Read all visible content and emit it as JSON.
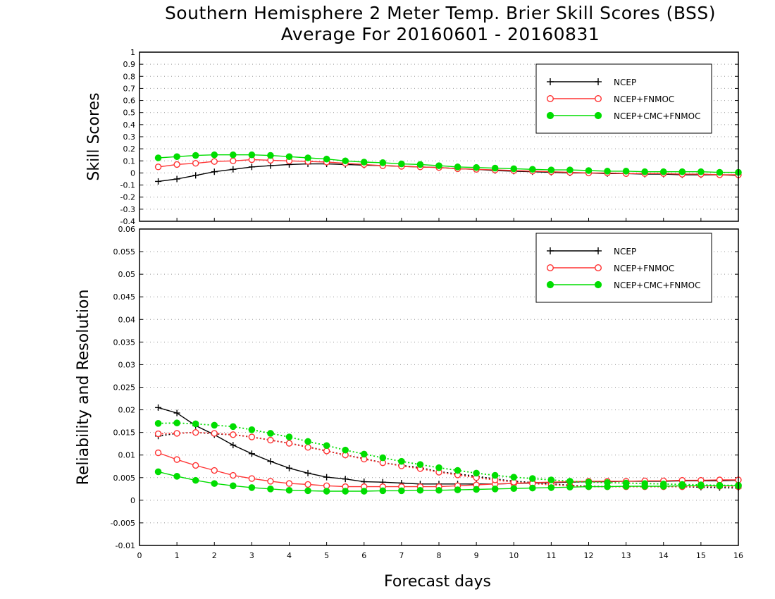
{
  "title_line1": "Southern Hemisphere 2 Meter Temp. Brier Skill Scores (BSS)",
  "title_line2": "Average For 20160601 - 20160831",
  "colors": {
    "NCEP": "#000000",
    "NCEP+FNMOC": "#ff3333",
    "NCEP+CMC+FNMOC": "#00dd00"
  },
  "chart_data": [
    {
      "type": "line",
      "title": "",
      "xlabel": "",
      "ylabel": "Skill Scores",
      "xlim": [
        0,
        16
      ],
      "ylim": [
        -0.4,
        1
      ],
      "yticks": [
        "-0.4",
        "-0.3",
        "-0.2",
        "-0.1",
        "0",
        "0.1",
        "0.2",
        "0.3",
        "0.4",
        "0.5",
        "0.6",
        "0.7",
        "0.8",
        "0.9",
        "1"
      ],
      "grid": true,
      "legend": "top-right",
      "x": [
        0.5,
        1,
        1.5,
        2,
        2.5,
        3,
        3.5,
        4,
        4.5,
        5,
        5.5,
        6,
        6.5,
        7,
        7.5,
        8,
        8.5,
        9,
        9.5,
        10,
        10.5,
        11,
        11.5,
        12,
        12.5,
        13,
        13.5,
        14,
        14.5,
        15,
        15.5,
        16
      ],
      "series": [
        {
          "name": "NCEP",
          "marker": "plus",
          "style": "solid",
          "values": [
            -0.07,
            -0.05,
            -0.02,
            0.01,
            0.03,
            0.05,
            0.06,
            0.07,
            0.075,
            0.075,
            0.07,
            0.065,
            0.06,
            0.055,
            0.05,
            0.045,
            0.035,
            0.03,
            0.02,
            0.015,
            0.01,
            0.005,
            0.0,
            0.0,
            -0.005,
            -0.005,
            -0.01,
            -0.01,
            -0.015,
            -0.015,
            -0.015,
            -0.02
          ]
        },
        {
          "name": "NCEP+FNMOC",
          "marker": "circle-open",
          "style": "solid",
          "values": [
            0.05,
            0.07,
            0.08,
            0.095,
            0.1,
            0.11,
            0.105,
            0.1,
            0.095,
            0.09,
            0.08,
            0.07,
            0.06,
            0.055,
            0.05,
            0.045,
            0.035,
            0.03,
            0.025,
            0.02,
            0.015,
            0.01,
            0.005,
            0.0,
            0.0,
            -0.005,
            -0.005,
            -0.005,
            -0.01,
            -0.01,
            -0.015,
            -0.015
          ]
        },
        {
          "name": "NCEP+CMC+FNMOC",
          "marker": "circle-filled",
          "style": "solid",
          "values": [
            0.125,
            0.135,
            0.145,
            0.15,
            0.15,
            0.15,
            0.145,
            0.135,
            0.125,
            0.115,
            0.1,
            0.09,
            0.085,
            0.075,
            0.07,
            0.06,
            0.05,
            0.045,
            0.04,
            0.035,
            0.03,
            0.025,
            0.025,
            0.02,
            0.015,
            0.015,
            0.01,
            0.01,
            0.01,
            0.01,
            0.005,
            0.005
          ]
        }
      ]
    },
    {
      "type": "line",
      "title": "",
      "xlabel": "Forecast days",
      "ylabel": "Reliability and Resolution",
      "xlim": [
        0,
        16
      ],
      "ylim": [
        -0.01,
        0.06
      ],
      "xticks": [
        "0",
        "1",
        "2",
        "3",
        "4",
        "5",
        "6",
        "7",
        "8",
        "9",
        "10",
        "11",
        "12",
        "13",
        "14",
        "15",
        "16"
      ],
      "yticks": [
        "-0.01",
        "-0.005",
        "0",
        "0.005",
        "0.01",
        "0.015",
        "0.02",
        "0.025",
        "0.03",
        "0.035",
        "0.04",
        "0.045",
        "0.05",
        "0.055",
        "0.06"
      ],
      "grid": true,
      "legend": "top-right",
      "x": [
        0.5,
        1,
        1.5,
        2,
        2.5,
        3,
        3.5,
        4,
        4.5,
        5,
        5.5,
        6,
        6.5,
        7,
        7.5,
        8,
        8.5,
        9,
        9.5,
        10,
        10.5,
        11,
        11.5,
        12,
        12.5,
        13,
        13.5,
        14,
        14.5,
        15,
        15.5,
        16
      ],
      "series": [
        {
          "name": "NCEP",
          "marker": "plus",
          "style": "solid",
          "values": [
            0.0205,
            0.0193,
            0.0165,
            0.0145,
            0.0122,
            0.0103,
            0.0086,
            0.0071,
            0.006,
            0.0051,
            0.0047,
            0.0041,
            0.004,
            0.0038,
            0.0036,
            0.0036,
            0.0036,
            0.0036,
            0.0036,
            0.0037,
            0.0038,
            0.0039,
            0.004,
            0.0041,
            0.0041,
            0.0042,
            0.0042,
            0.0042,
            0.0043,
            0.0043,
            0.0043,
            0.0044
          ]
        },
        {
          "name": "NCEP",
          "marker": "plus",
          "style": "dotted",
          "values": [
            0.0142,
            0.0148,
            0.015,
            0.0147,
            0.0145,
            0.014,
            0.0133,
            0.0126,
            0.0118,
            0.0109,
            0.01,
            0.0092,
            0.0083,
            0.0077,
            0.0072,
            0.0063,
            0.0058,
            0.0053,
            0.0047,
            0.0042,
            0.0039,
            0.0036,
            0.0033,
            0.0031,
            0.003,
            0.003,
            0.003,
            0.003,
            0.003,
            0.0029,
            0.0028,
            0.0027
          ]
        },
        {
          "name": "NCEP+FNMOC",
          "marker": "circle-open",
          "style": "solid",
          "values": [
            0.0105,
            0.009,
            0.0077,
            0.0066,
            0.0055,
            0.0048,
            0.0042,
            0.0037,
            0.0035,
            0.0032,
            0.003,
            0.003,
            0.003,
            0.003,
            0.003,
            0.003,
            0.0032,
            0.0034,
            0.0036,
            0.0037,
            0.0039,
            0.004,
            0.0041,
            0.0042,
            0.0042,
            0.0042,
            0.0043,
            0.0043,
            0.0044,
            0.0044,
            0.0045,
            0.0045
          ]
        },
        {
          "name": "NCEP+FNMOC",
          "marker": "circle-open",
          "style": "dotted",
          "values": [
            0.0147,
            0.0148,
            0.015,
            0.0148,
            0.0145,
            0.014,
            0.0133,
            0.0126,
            0.0117,
            0.0109,
            0.01,
            0.0091,
            0.0083,
            0.0076,
            0.007,
            0.0062,
            0.0056,
            0.005,
            0.0045,
            0.004,
            0.0037,
            0.0034,
            0.0032,
            0.003,
            0.003,
            0.003,
            0.003,
            0.003,
            0.003,
            0.0031,
            0.0031,
            0.003
          ]
        },
        {
          "name": "NCEP+CMC+FNMOC",
          "marker": "circle-filled",
          "style": "solid",
          "values": [
            0.0063,
            0.0053,
            0.0044,
            0.0037,
            0.0032,
            0.0028,
            0.0025,
            0.0022,
            0.0021,
            0.002,
            0.002,
            0.002,
            0.0021,
            0.0021,
            0.0022,
            0.0022,
            0.0023,
            0.0024,
            0.0025,
            0.0026,
            0.0027,
            0.0028,
            0.0029,
            0.003,
            0.003,
            0.0031,
            0.0031,
            0.0031,
            0.0032,
            0.0032,
            0.0032,
            0.0032
          ]
        },
        {
          "name": "NCEP+CMC+FNMOC",
          "marker": "circle-filled",
          "style": "dotted",
          "values": [
            0.017,
            0.0171,
            0.0169,
            0.0166,
            0.0163,
            0.0156,
            0.0148,
            0.014,
            0.013,
            0.0121,
            0.0111,
            0.0102,
            0.0094,
            0.0086,
            0.0079,
            0.0072,
            0.0066,
            0.006,
            0.0055,
            0.0051,
            0.0048,
            0.0045,
            0.0042,
            0.004,
            0.0039,
            0.0038,
            0.0037,
            0.0036,
            0.0035,
            0.0034,
            0.0033,
            0.0033
          ]
        }
      ]
    }
  ]
}
